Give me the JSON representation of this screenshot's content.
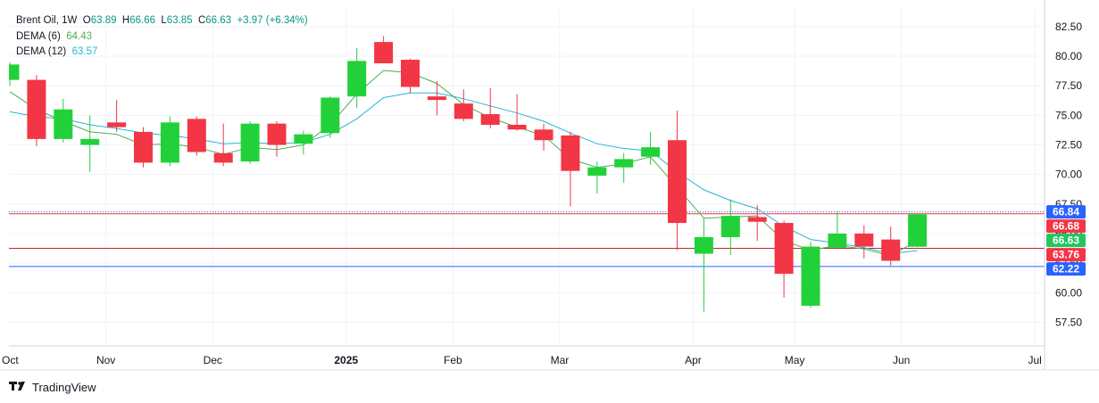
{
  "legend": {
    "symbol": "Brent Oil, 1W",
    "open_label": "O",
    "open": "63.89",
    "high_label": "H",
    "high": "66.66",
    "low_label": "L",
    "low": "63.85",
    "close_label": "C",
    "close": "66.63",
    "change": "+3.97 (+6.34%)",
    "dema6_label": "DEMA (6)",
    "dema6_value": "64.43",
    "dema12_label": "DEMA (12)",
    "dema12_value": "63.57"
  },
  "branding": "TradingView",
  "colors": {
    "up": "#22d13a",
    "down": "#f23645",
    "dema6": "#4caf50",
    "dema12": "#26b5d6",
    "grid": "#f0f3fa",
    "badge_blue": "#2962ff",
    "badge_red": "#f23645",
    "badge_green": "#22c55e"
  },
  "chart_data": {
    "type": "candlestick",
    "title": "Brent Oil, 1W",
    "ylim": [
      55.5,
      84
    ],
    "y_ticks": [
      57.5,
      60,
      62.5,
      65,
      67.5,
      70,
      72.5,
      75,
      77.5,
      80,
      82.5
    ],
    "x_tick_labels": [
      {
        "label": "Oct",
        "index": -0.6
      },
      {
        "label": "Nov",
        "index": 3.6
      },
      {
        "label": "Dec",
        "index": 7.6
      },
      {
        "label": "2025",
        "index": 12.6
      },
      {
        "label": "Feb",
        "index": 16.6
      },
      {
        "label": "Mar",
        "index": 20.6
      },
      {
        "label": "Apr",
        "index": 25.6
      },
      {
        "label": "May",
        "index": 29.4
      },
      {
        "label": "Jun",
        "index": 33.4
      },
      {
        "label": "Jul",
        "index": 38.4
      }
    ],
    "candles": [
      {
        "o": 78.0,
        "h": 79.5,
        "l": 77.5,
        "c": 79.3
      },
      {
        "o": 78.0,
        "h": 78.4,
        "l": 72.4,
        "c": 73.0
      },
      {
        "o": 73.0,
        "h": 76.4,
        "l": 72.7,
        "c": 75.5
      },
      {
        "o": 72.5,
        "h": 75.0,
        "l": 70.2,
        "c": 73.0
      },
      {
        "o": 74.4,
        "h": 76.3,
        "l": 73.6,
        "c": 74.0
      },
      {
        "o": 73.6,
        "h": 74.0,
        "l": 70.6,
        "c": 71.0
      },
      {
        "o": 71.0,
        "h": 74.9,
        "l": 70.7,
        "c": 74.4
      },
      {
        "o": 74.7,
        "h": 74.9,
        "l": 71.6,
        "c": 71.9
      },
      {
        "o": 71.8,
        "h": 74.3,
        "l": 70.7,
        "c": 71.0
      },
      {
        "o": 71.1,
        "h": 74.5,
        "l": 70.9,
        "c": 74.3
      },
      {
        "o": 74.3,
        "h": 74.5,
        "l": 71.5,
        "c": 72.5
      },
      {
        "o": 72.6,
        "h": 73.7,
        "l": 71.7,
        "c": 73.4
      },
      {
        "o": 73.5,
        "h": 76.6,
        "l": 73.1,
        "c": 76.5
      },
      {
        "o": 76.6,
        "h": 80.7,
        "l": 75.6,
        "c": 79.6
      },
      {
        "o": 81.2,
        "h": 81.7,
        "l": 79.4,
        "c": 79.4
      },
      {
        "o": 79.7,
        "h": 79.8,
        "l": 76.9,
        "c": 77.4
      },
      {
        "o": 76.6,
        "h": 77.9,
        "l": 75.0,
        "c": 76.3
      },
      {
        "o": 76.0,
        "h": 77.2,
        "l": 74.5,
        "c": 74.7
      },
      {
        "o": 75.1,
        "h": 77.3,
        "l": 73.9,
        "c": 74.2
      },
      {
        "o": 74.2,
        "h": 76.8,
        "l": 73.7,
        "c": 73.8
      },
      {
        "o": 73.8,
        "h": 74.3,
        "l": 72.0,
        "c": 72.9
      },
      {
        "o": 73.3,
        "h": 73.6,
        "l": 67.3,
        "c": 70.3
      },
      {
        "o": 69.9,
        "h": 71.1,
        "l": 68.4,
        "c": 70.6
      },
      {
        "o": 70.6,
        "h": 71.8,
        "l": 69.3,
        "c": 71.3
      },
      {
        "o": 71.5,
        "h": 73.6,
        "l": 70.8,
        "c": 72.3
      },
      {
        "o": 72.9,
        "h": 75.4,
        "l": 63.6,
        "c": 65.9
      },
      {
        "o": 63.3,
        "h": 66.4,
        "l": 58.4,
        "c": 64.7
      },
      {
        "o": 64.7,
        "h": 67.9,
        "l": 63.2,
        "c": 66.5
      },
      {
        "o": 66.4,
        "h": 67.4,
        "l": 64.4,
        "c": 66.0
      },
      {
        "o": 65.9,
        "h": 66.1,
        "l": 59.6,
        "c": 61.6
      },
      {
        "o": 58.9,
        "h": 64.3,
        "l": 58.7,
        "c": 63.9
      },
      {
        "o": 63.8,
        "h": 66.9,
        "l": 63.8,
        "c": 65.0
      },
      {
        "o": 65.0,
        "h": 65.7,
        "l": 62.9,
        "c": 63.9
      },
      {
        "o": 64.5,
        "h": 65.6,
        "l": 62.3,
        "c": 62.7
      },
      {
        "o": 63.89,
        "h": 66.66,
        "l": 63.85,
        "c": 66.63
      }
    ],
    "dema6": [
      77.0,
      75.5,
      74.5,
      73.6,
      73.4,
      72.5,
      72.6,
      72.3,
      71.7,
      72.3,
      72.1,
      72.5,
      74.2,
      76.8,
      78.8,
      78.6,
      77.7,
      75.9,
      74.8,
      74.0,
      73.3,
      71.3,
      70.6,
      70.9,
      71.5,
      68.9,
      66.3,
      66.4,
      66.5,
      64.4,
      63.6,
      64.0,
      63.7,
      63.1,
      64.43
    ],
    "dema12": [
      75.3,
      74.9,
      74.7,
      74.2,
      73.9,
      73.5,
      73.3,
      73.0,
      72.6,
      72.7,
      72.6,
      72.7,
      73.4,
      74.7,
      76.5,
      76.9,
      76.9,
      76.4,
      75.8,
      75.2,
      74.5,
      73.5,
      72.6,
      72.2,
      72.0,
      70.2,
      68.7,
      67.8,
      67.1,
      65.6,
      64.5,
      64.2,
      63.8,
      63.3,
      63.57
    ],
    "horizontal_lines": [
      {
        "value": 66.84,
        "color": "#2962ff",
        "style": "dotted"
      },
      {
        "value": 66.68,
        "color": "#f23645",
        "style": "solid"
      },
      {
        "value": 63.76,
        "color": "#b22833",
        "style": "solid"
      },
      {
        "value": 62.22,
        "color": "#2962ff",
        "style": "solid"
      }
    ],
    "price_badges": [
      {
        "value": 66.84,
        "label": "66.84",
        "color": "#2962ff"
      },
      {
        "value": 66.68,
        "label": "66.68",
        "color": "#f23645"
      },
      {
        "value": 66.63,
        "label": "66.63",
        "color": "#22c55e"
      },
      {
        "value": 63.76,
        "label": "63.76",
        "color": "#f23645"
      },
      {
        "value": 62.22,
        "label": "62.22",
        "color": "#2962ff"
      }
    ],
    "grid": true
  }
}
